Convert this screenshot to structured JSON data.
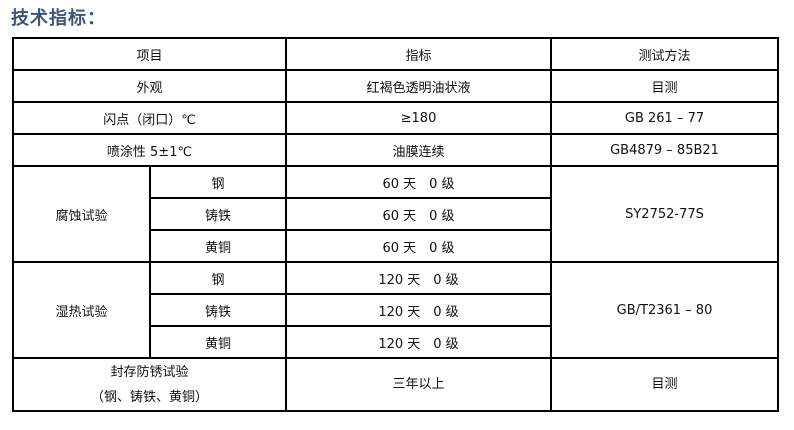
{
  "title": "技术指标：",
  "headers": [
    "项目",
    "指标",
    "测试方法"
  ],
  "rows": {
    "appearance": {
      "item": "外观",
      "value": "红褐色透明油状液",
      "method": "目测"
    },
    "flash": {
      "item": "闪点（闭口）℃",
      "value": "≥180",
      "method": "GB 261 – 77"
    },
    "spray": {
      "item": "喷涂性 5±1℃",
      "value": "油膜连续",
      "method": "GB4879 – 85B21"
    },
    "corrosion": {
      "item": "腐蚀试验",
      "method": "SY2752-77S",
      "sub": [
        {
          "metal": "钢",
          "value": "60 天　0 级"
        },
        {
          "metal": "铸铁",
          "value": "60 天　0 级"
        },
        {
          "metal": "黄铜",
          "value": "60 天　0 级"
        }
      ]
    },
    "humid": {
      "item": "湿热试验",
      "method": "GB/T2361 – 80",
      "sub": [
        {
          "metal": "钢",
          "value": "120 天　0 级"
        },
        {
          "metal": "铸铁",
          "value": "120 天　0 级"
        },
        {
          "metal": "黄铜",
          "value": "120 天　0 级"
        }
      ]
    },
    "storage": {
      "item_line1": "封存防锈试验",
      "item_line2": "（钢、铸铁、黄铜）",
      "value": "三年以上",
      "method": "目测"
    }
  }
}
